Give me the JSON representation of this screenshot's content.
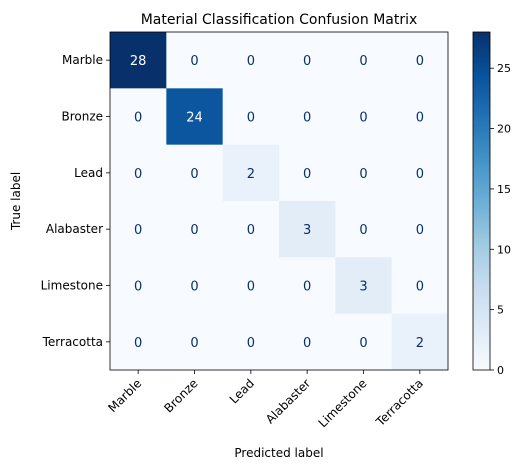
{
  "chart_data": {
    "type": "heatmap",
    "title": "Material Classification Confusion Matrix",
    "xlabel": "Predicted label",
    "ylabel": "True label",
    "x_categories": [
      "Marble",
      "Bronze",
      "Lead",
      "Alabaster",
      "Limestone",
      "Terracotta"
    ],
    "y_categories": [
      "Marble",
      "Bronze",
      "Lead",
      "Alabaster",
      "Limestone",
      "Terracotta"
    ],
    "values": [
      [
        28,
        0,
        0,
        0,
        0,
        0
      ],
      [
        0,
        24,
        0,
        0,
        0,
        0
      ],
      [
        0,
        0,
        2,
        0,
        0,
        0
      ],
      [
        0,
        0,
        0,
        3,
        0,
        0
      ],
      [
        0,
        0,
        0,
        0,
        3,
        0
      ],
      [
        0,
        0,
        0,
        0,
        0,
        2
      ]
    ],
    "colormap": "Blues",
    "colorbar": {
      "range": [
        0,
        28
      ],
      "ticks": [
        0,
        5,
        10,
        15,
        20,
        25
      ]
    },
    "grid": false
  }
}
